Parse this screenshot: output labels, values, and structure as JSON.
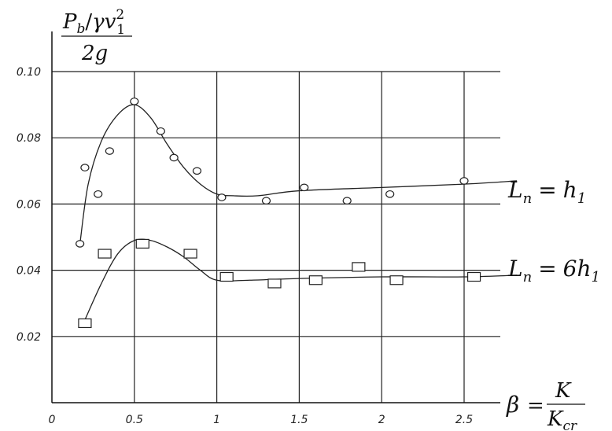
{
  "chart_data": {
    "type": "scatter",
    "title": "",
    "ylabel": {
      "numerator": "P",
      "numerator_sub": "b",
      "slash": "/",
      "gamma": "γ",
      "v": "v",
      "v_sub": "1",
      "v_sup": "2",
      "denominator": "2g"
    },
    "xlabel": {
      "beta": "β",
      "equals": "=",
      "numerator": "K",
      "denominator": "K",
      "denominator_sub": "cr"
    },
    "xlim": [
      0,
      2.5
    ],
    "ylim": [
      0,
      0.1
    ],
    "x_ticks": [
      "0",
      "0.5",
      "1",
      "1.5",
      "2",
      "2.5"
    ],
    "y_ticks": [
      "0.02",
      "0.04",
      "0.06",
      "0.08",
      "0.10"
    ],
    "y_tick_values": [
      0.02,
      0.04,
      0.06,
      0.08,
      0.1
    ],
    "grid": true,
    "series": [
      {
        "name": "L_n = h_1",
        "label_parts": {
          "L": "L",
          "L_sub": "n",
          "eq": "=",
          "coef": "",
          "h": "h",
          "h_sub": "1"
        },
        "marker": "circle",
        "points": [
          [
            0.17,
            0.048
          ],
          [
            0.2,
            0.071
          ],
          [
            0.28,
            0.063
          ],
          [
            0.35,
            0.076
          ],
          [
            0.5,
            0.091
          ],
          [
            0.66,
            0.082
          ],
          [
            0.74,
            0.074
          ],
          [
            0.88,
            0.07
          ],
          [
            1.03,
            0.062
          ],
          [
            1.3,
            0.061
          ],
          [
            1.53,
            0.065
          ],
          [
            1.79,
            0.061
          ],
          [
            2.05,
            0.063
          ],
          [
            2.5,
            0.067
          ]
        ],
        "curve": [
          [
            0.17,
            0.048
          ],
          [
            0.22,
            0.066
          ],
          [
            0.3,
            0.079
          ],
          [
            0.4,
            0.087
          ],
          [
            0.5,
            0.09
          ],
          [
            0.6,
            0.086
          ],
          [
            0.7,
            0.078
          ],
          [
            0.8,
            0.071
          ],
          [
            0.9,
            0.066
          ],
          [
            1.0,
            0.063
          ],
          [
            1.1,
            0.0625
          ],
          [
            1.25,
            0.0625
          ],
          [
            1.5,
            0.064
          ],
          [
            2.0,
            0.065
          ],
          [
            2.5,
            0.066
          ],
          [
            2.82,
            0.067
          ]
        ]
      },
      {
        "name": "L_n = 6h_1",
        "label_parts": {
          "L": "L",
          "L_sub": "n",
          "eq": "=",
          "coef": "6",
          "h": "h",
          "h_sub": "1"
        },
        "marker": "square",
        "points": [
          [
            0.2,
            0.024
          ],
          [
            0.32,
            0.045
          ],
          [
            0.55,
            0.048
          ],
          [
            0.84,
            0.045
          ],
          [
            1.06,
            0.038
          ],
          [
            1.35,
            0.036
          ],
          [
            1.6,
            0.037
          ],
          [
            1.86,
            0.041
          ],
          [
            2.09,
            0.037
          ],
          [
            2.56,
            0.038
          ]
        ],
        "curve": [
          [
            0.2,
            0.025
          ],
          [
            0.3,
            0.036
          ],
          [
            0.4,
            0.045
          ],
          [
            0.5,
            0.049
          ],
          [
            0.6,
            0.049
          ],
          [
            0.7,
            0.047
          ],
          [
            0.8,
            0.044
          ],
          [
            0.9,
            0.04
          ],
          [
            1.0,
            0.037
          ],
          [
            1.2,
            0.037
          ],
          [
            1.5,
            0.0375
          ],
          [
            2.0,
            0.038
          ],
          [
            2.5,
            0.038
          ],
          [
            2.82,
            0.0385
          ]
        ]
      }
    ]
  }
}
